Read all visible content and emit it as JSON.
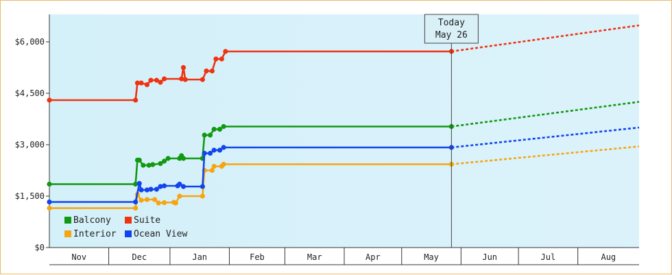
{
  "chart_data": {
    "type": "line",
    "title": "",
    "xlabel": "",
    "ylabel": "",
    "ylim": [
      0,
      6800
    ],
    "y_ticks": [
      {
        "value": 0,
        "label": "$0"
      },
      {
        "value": 1500,
        "label": "$1,500"
      },
      {
        "value": 3000,
        "label": "$3,000"
      },
      {
        "value": 4500,
        "label": "$4,500"
      },
      {
        "value": 6000,
        "label": "$6,000"
      }
    ],
    "x_range": [
      "2023-10-29",
      "2024-09-01"
    ],
    "months": [
      {
        "label": "Nov",
        "start": "2023-10-29",
        "end": "2023-11-29"
      },
      {
        "label": "Dec",
        "start": "2023-11-29",
        "end": "2023-12-31"
      },
      {
        "label": "Jan",
        "start": "2023-12-31",
        "end": "2024-01-31"
      },
      {
        "label": "Feb",
        "start": "2024-01-31",
        "end": "2024-02-29"
      },
      {
        "label": "Mar",
        "start": "2024-02-29",
        "end": "2024-03-31"
      },
      {
        "label": "Apr",
        "start": "2024-03-31",
        "end": "2024-04-30"
      },
      {
        "label": "May",
        "start": "2024-04-30",
        "end": "2024-05-31"
      },
      {
        "label": "Jun",
        "start": "2024-05-31",
        "end": "2024-06-30"
      },
      {
        "label": "Jul",
        "start": "2024-06-30",
        "end": "2024-07-31"
      },
      {
        "label": "Aug",
        "start": "2024-07-31",
        "end": "2024-09-01"
      }
    ],
    "today": {
      "date": "2024-05-26",
      "line1": "Today",
      "line2": "May 26"
    },
    "grid": false,
    "legend_position": "bottom-left",
    "series": [
      {
        "name": "Balcony",
        "color": "#119911",
        "points": [
          {
            "x": "2023-10-29",
            "y": 1850
          },
          {
            "x": "2023-12-13",
            "y": 1850
          },
          {
            "x": "2023-12-14",
            "y": 2550
          },
          {
            "x": "2023-12-15",
            "y": 2550
          },
          {
            "x": "2023-12-17",
            "y": 2400
          },
          {
            "x": "2023-12-20",
            "y": 2400
          },
          {
            "x": "2023-12-22",
            "y": 2420
          },
          {
            "x": "2023-12-26",
            "y": 2450
          },
          {
            "x": "2023-12-28",
            "y": 2520
          },
          {
            "x": "2023-12-30",
            "y": 2600
          },
          {
            "x": "2024-01-05",
            "y": 2600
          },
          {
            "x": "2024-01-06",
            "y": 2680
          },
          {
            "x": "2024-01-07",
            "y": 2600
          },
          {
            "x": "2024-01-17",
            "y": 2600
          },
          {
            "x": "2024-01-18",
            "y": 3280
          },
          {
            "x": "2024-01-21",
            "y": 3280
          },
          {
            "x": "2024-01-23",
            "y": 3450
          },
          {
            "x": "2024-01-26",
            "y": 3450
          },
          {
            "x": "2024-01-28",
            "y": 3530
          },
          {
            "x": "2024-05-26",
            "y": 3530
          }
        ],
        "projection": [
          {
            "x": "2024-05-26",
            "y": 3530
          },
          {
            "x": "2024-09-01",
            "y": 4250
          }
        ]
      },
      {
        "name": "Suite",
        "color": "#ee3311",
        "points": [
          {
            "x": "2023-10-29",
            "y": 4300
          },
          {
            "x": "2023-12-13",
            "y": 4300
          },
          {
            "x": "2023-12-14",
            "y": 4800
          },
          {
            "x": "2023-12-16",
            "y": 4800
          },
          {
            "x": "2023-12-19",
            "y": 4750
          },
          {
            "x": "2023-12-21",
            "y": 4880
          },
          {
            "x": "2023-12-24",
            "y": 4880
          },
          {
            "x": "2023-12-26",
            "y": 4820
          },
          {
            "x": "2023-12-28",
            "y": 4920
          },
          {
            "x": "2024-01-06",
            "y": 4920
          },
          {
            "x": "2024-01-07",
            "y": 5250
          },
          {
            "x": "2024-01-08",
            "y": 4900
          },
          {
            "x": "2024-01-17",
            "y": 4900
          },
          {
            "x": "2024-01-19",
            "y": 5150
          },
          {
            "x": "2024-01-22",
            "y": 5150
          },
          {
            "x": "2024-01-24",
            "y": 5500
          },
          {
            "x": "2024-01-27",
            "y": 5500
          },
          {
            "x": "2024-01-29",
            "y": 5720
          },
          {
            "x": "2024-05-26",
            "y": 5720
          }
        ],
        "projection": [
          {
            "x": "2024-05-26",
            "y": 5720
          },
          {
            "x": "2024-09-01",
            "y": 6480
          }
        ]
      },
      {
        "name": "Interior",
        "color": "#f5a511",
        "points": [
          {
            "x": "2023-10-29",
            "y": 1150
          },
          {
            "x": "2023-12-13",
            "y": 1150
          },
          {
            "x": "2023-12-14",
            "y": 1550
          },
          {
            "x": "2023-12-16",
            "y": 1380
          },
          {
            "x": "2023-12-19",
            "y": 1400
          },
          {
            "x": "2023-12-23",
            "y": 1400
          },
          {
            "x": "2023-12-25",
            "y": 1300
          },
          {
            "x": "2023-12-28",
            "y": 1310
          },
          {
            "x": "2024-01-02",
            "y": 1320
          },
          {
            "x": "2024-01-03",
            "y": 1300
          },
          {
            "x": "2024-01-05",
            "y": 1500
          },
          {
            "x": "2024-01-17",
            "y": 1500
          },
          {
            "x": "2024-01-18",
            "y": 2250
          },
          {
            "x": "2024-01-22",
            "y": 2250
          },
          {
            "x": "2024-01-23",
            "y": 2370
          },
          {
            "x": "2024-01-27",
            "y": 2370
          },
          {
            "x": "2024-01-28",
            "y": 2430
          },
          {
            "x": "2024-05-26",
            "y": 2430
          }
        ],
        "projection": [
          {
            "x": "2024-05-26",
            "y": 2430
          },
          {
            "x": "2024-09-01",
            "y": 2950
          }
        ]
      },
      {
        "name": "Ocean View",
        "color": "#1144ee",
        "points": [
          {
            "x": "2023-10-29",
            "y": 1330
          },
          {
            "x": "2023-12-13",
            "y": 1330
          },
          {
            "x": "2023-12-15",
            "y": 1870
          },
          {
            "x": "2023-12-16",
            "y": 1680
          },
          {
            "x": "2023-12-19",
            "y": 1680
          },
          {
            "x": "2023-12-21",
            "y": 1700
          },
          {
            "x": "2023-12-24",
            "y": 1700
          },
          {
            "x": "2023-12-26",
            "y": 1780
          },
          {
            "x": "2023-12-28",
            "y": 1800
          },
          {
            "x": "2024-01-04",
            "y": 1800
          },
          {
            "x": "2024-01-05",
            "y": 1850
          },
          {
            "x": "2024-01-07",
            "y": 1780
          },
          {
            "x": "2024-01-17",
            "y": 1780
          },
          {
            "x": "2024-01-18",
            "y": 2750
          },
          {
            "x": "2024-01-21",
            "y": 2750
          },
          {
            "x": "2024-01-23",
            "y": 2840
          },
          {
            "x": "2024-01-26",
            "y": 2840
          },
          {
            "x": "2024-01-28",
            "y": 2920
          },
          {
            "x": "2024-05-26",
            "y": 2920
          }
        ],
        "projection": [
          {
            "x": "2024-05-26",
            "y": 2920
          },
          {
            "x": "2024-09-01",
            "y": 3500
          }
        ]
      }
    ]
  }
}
